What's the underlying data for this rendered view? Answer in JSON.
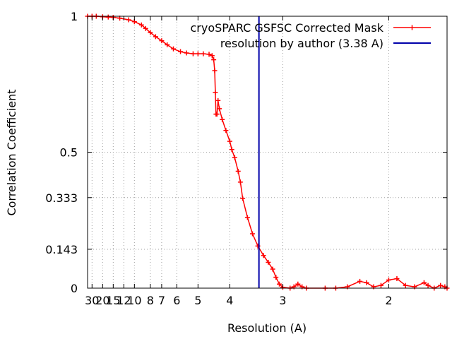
{
  "chart_data": {
    "type": "line",
    "xlabel": "Resolution (A)",
    "ylabel": "Correlation Coefficient",
    "x_axis_scale": "reciprocal",
    "xlim_resolution": [
      38,
      1.69
    ],
    "ylim": [
      0,
      1
    ],
    "grid": true,
    "legend_position": "top-right",
    "x_ticks": [
      "30",
      "20",
      "15",
      "12",
      "10",
      "8",
      "7",
      "6",
      "5",
      "4",
      "3",
      "2"
    ],
    "y_ticks": [
      {
        "value": 0,
        "label": "0"
      },
      {
        "value": 0.143,
        "label": "0.143"
      },
      {
        "value": 0.333,
        "label": "0.333"
      },
      {
        "value": 0.5,
        "label": "0.5"
      },
      {
        "value": 1,
        "label": "1"
      }
    ],
    "series": [
      {
        "name": "cryoSPARC GSFSC Corrected Mask",
        "color": "#ff0000",
        "marker": "plus",
        "points": [
          [
            38,
            1.0
          ],
          [
            30,
            1.0
          ],
          [
            25,
            1.0
          ],
          [
            20,
            0.998
          ],
          [
            17,
            0.997
          ],
          [
            15,
            0.996
          ],
          [
            13,
            0.993
          ],
          [
            11,
            0.987
          ],
          [
            10,
            0.98
          ],
          [
            9,
            0.968
          ],
          [
            8.5,
            0.955
          ],
          [
            8,
            0.94
          ],
          [
            7.5,
            0.925
          ],
          [
            7,
            0.91
          ],
          [
            6.6,
            0.895
          ],
          [
            6.2,
            0.88
          ],
          [
            5.8,
            0.87
          ],
          [
            5.5,
            0.865
          ],
          [
            5.2,
            0.862
          ],
          [
            5.0,
            0.862
          ],
          [
            4.8,
            0.862
          ],
          [
            4.6,
            0.86
          ],
          [
            4.5,
            0.855
          ],
          [
            4.45,
            0.84
          ],
          [
            4.42,
            0.8
          ],
          [
            4.4,
            0.72
          ],
          [
            4.38,
            0.64
          ],
          [
            4.35,
            0.64
          ],
          [
            4.32,
            0.69
          ],
          [
            4.28,
            0.66
          ],
          [
            4.2,
            0.62
          ],
          [
            4.1,
            0.58
          ],
          [
            4.0,
            0.54
          ],
          [
            3.95,
            0.51
          ],
          [
            3.88,
            0.48
          ],
          [
            3.8,
            0.43
          ],
          [
            3.75,
            0.39
          ],
          [
            3.7,
            0.33
          ],
          [
            3.6,
            0.26
          ],
          [
            3.5,
            0.2
          ],
          [
            3.4,
            0.155
          ],
          [
            3.3,
            0.12
          ],
          [
            3.22,
            0.095
          ],
          [
            3.15,
            0.07
          ],
          [
            3.1,
            0.04
          ],
          [
            3.05,
            0.015
          ],
          [
            3.0,
            0.003
          ],
          [
            2.9,
            0.0
          ],
          [
            2.85,
            0.005
          ],
          [
            2.8,
            0.015
          ],
          [
            2.75,
            0.005
          ],
          [
            2.7,
            0.0
          ],
          [
            2.5,
            0.0
          ],
          [
            2.4,
            0.0
          ],
          [
            2.3,
            0.005
          ],
          [
            2.2,
            0.025
          ],
          [
            2.15,
            0.02
          ],
          [
            2.1,
            0.005
          ],
          [
            2.05,
            0.01
          ],
          [
            2.0,
            0.03
          ],
          [
            1.95,
            0.035
          ],
          [
            1.9,
            0.01
          ],
          [
            1.85,
            0.005
          ],
          [
            1.8,
            0.02
          ],
          [
            1.78,
            0.01
          ],
          [
            1.75,
            0.0
          ],
          [
            1.72,
            0.01
          ],
          [
            1.7,
            0.005
          ],
          [
            1.69,
            0.0
          ]
        ]
      },
      {
        "name": "resolution by author (3.38 A)",
        "color": "#0000aa",
        "type": "vertical_line",
        "x_resolution": 3.38
      }
    ]
  }
}
